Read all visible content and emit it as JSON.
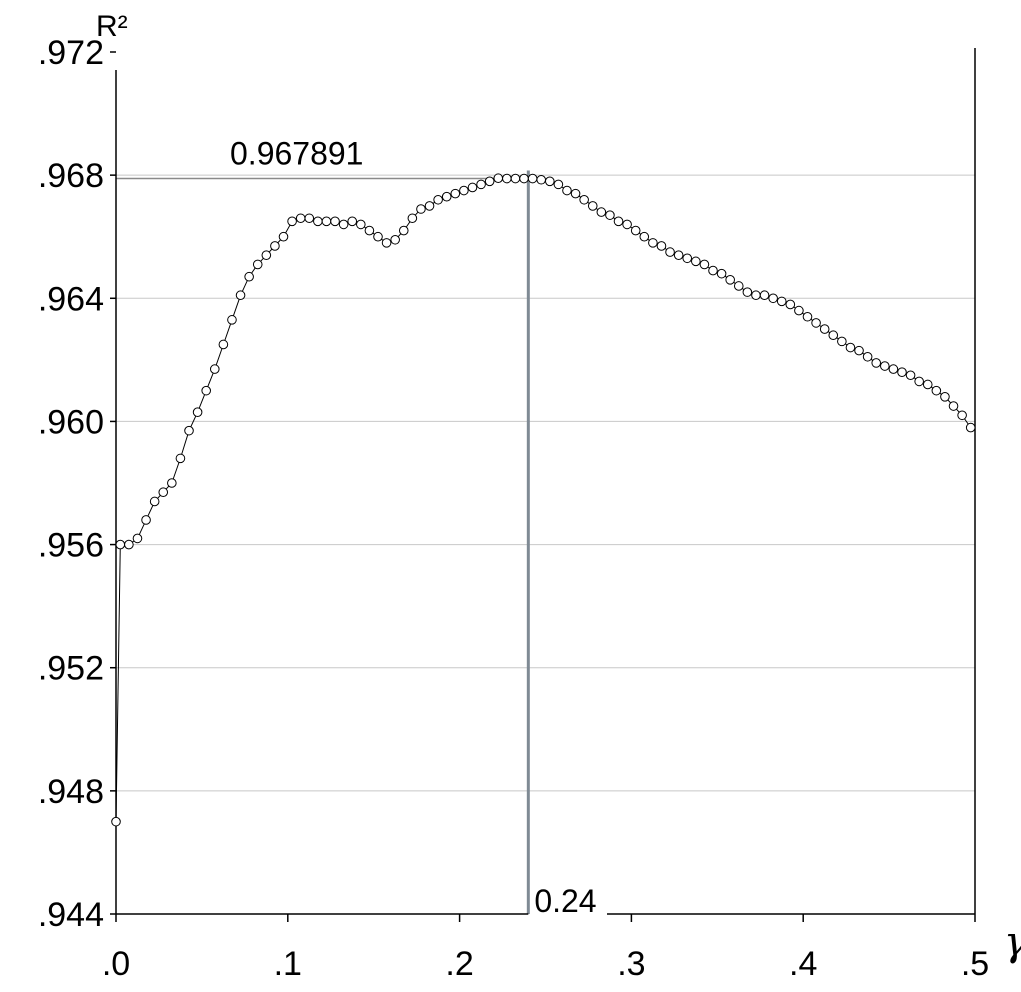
{
  "chart_data": {
    "type": "line",
    "ylabel": "R²",
    "xlabel": "γ",
    "xlim": [
      0,
      0.5
    ],
    "ylim": [
      0.944,
      0.972
    ],
    "x_ticks": [
      ".0",
      ".1",
      ".2",
      ".3",
      ".4",
      ".5"
    ],
    "x_tick_values": [
      0,
      0.1,
      0.2,
      0.3,
      0.4,
      0.5
    ],
    "y_ticks": [
      ".944",
      ".948",
      ".952",
      ".956",
      ".960",
      ".964",
      ".968",
      ".972"
    ],
    "y_tick_values": [
      0.944,
      0.948,
      0.952,
      0.956,
      0.96,
      0.964,
      0.968,
      0.972
    ],
    "grid": true,
    "markers": "open-circle",
    "annotations": {
      "peak_value": "0.967891",
      "peak_gamma": "0.24",
      "peak_x": 0.24,
      "peak_y": 0.967891
    },
    "series": [
      {
        "x": [
          0,
          0.0025,
          0.0075,
          0.0125,
          0.0175,
          0.0225,
          0.0275,
          0.0325,
          0.0375,
          0.0425,
          0.0475,
          0.0525,
          0.0575,
          0.0625,
          0.0675,
          0.0725,
          0.0775,
          0.0825,
          0.0875,
          0.0925,
          0.0975,
          0.1025,
          0.1075,
          0.1125,
          0.1175,
          0.1225,
          0.1275,
          0.1325,
          0.1375,
          0.1425,
          0.1475,
          0.1525,
          0.1575,
          0.1625,
          0.1675,
          0.1725,
          0.1775,
          0.1825,
          0.1875,
          0.1925,
          0.1975,
          0.2025,
          0.2075,
          0.2125,
          0.2175,
          0.2225,
          0.2275,
          0.2325,
          0.2375,
          0.2425,
          0.2475,
          0.2525,
          0.2575,
          0.2625,
          0.2675,
          0.2725,
          0.2775,
          0.2825,
          0.2875,
          0.2925,
          0.2975,
          0.3025,
          0.3075,
          0.3125,
          0.3175,
          0.3225,
          0.3275,
          0.3325,
          0.3375,
          0.3425,
          0.3475,
          0.3525,
          0.3575,
          0.3625,
          0.3675,
          0.3725,
          0.3775,
          0.3825,
          0.3875,
          0.3925,
          0.3975,
          0.4025,
          0.4075,
          0.4125,
          0.4175,
          0.4225,
          0.4275,
          0.4325,
          0.4375,
          0.4425,
          0.4475,
          0.4525,
          0.4575,
          0.4625,
          0.4675,
          0.4725,
          0.4775,
          0.4825,
          0.4875,
          0.4925,
          0.4975
        ],
        "values": [
          0.947,
          0.956,
          0.956,
          0.9562,
          0.9568,
          0.9574,
          0.9577,
          0.958,
          0.9588,
          0.9597,
          0.9603,
          0.961,
          0.9617,
          0.9625,
          0.9633,
          0.9641,
          0.9647,
          0.9651,
          0.9654,
          0.9657,
          0.966,
          0.9665,
          0.9666,
          0.9666,
          0.9665,
          0.9665,
          0.9665,
          0.9664,
          0.9665,
          0.9664,
          0.9662,
          0.966,
          0.9658,
          0.9659,
          0.9662,
          0.9666,
          0.9669,
          0.967,
          0.9672,
          0.9673,
          0.9674,
          0.9675,
          0.9676,
          0.9677,
          0.9678,
          0.9679,
          0.96789,
          0.96789,
          0.96789,
          0.96789,
          0.96785,
          0.9678,
          0.9677,
          0.9675,
          0.9674,
          0.9672,
          0.967,
          0.9668,
          0.9667,
          0.9665,
          0.9664,
          0.9662,
          0.966,
          0.9658,
          0.9657,
          0.9655,
          0.9654,
          0.9653,
          0.9652,
          0.9651,
          0.9649,
          0.9648,
          0.9646,
          0.9644,
          0.9642,
          0.9641,
          0.9641,
          0.964,
          0.9639,
          0.9638,
          0.9636,
          0.9634,
          0.9632,
          0.963,
          0.9628,
          0.9626,
          0.9624,
          0.9623,
          0.9621,
          0.9619,
          0.9618,
          0.9617,
          0.9616,
          0.9615,
          0.9613,
          0.9612,
          0.961,
          0.9608,
          0.9605,
          0.9602,
          0.9598
        ]
      }
    ]
  }
}
